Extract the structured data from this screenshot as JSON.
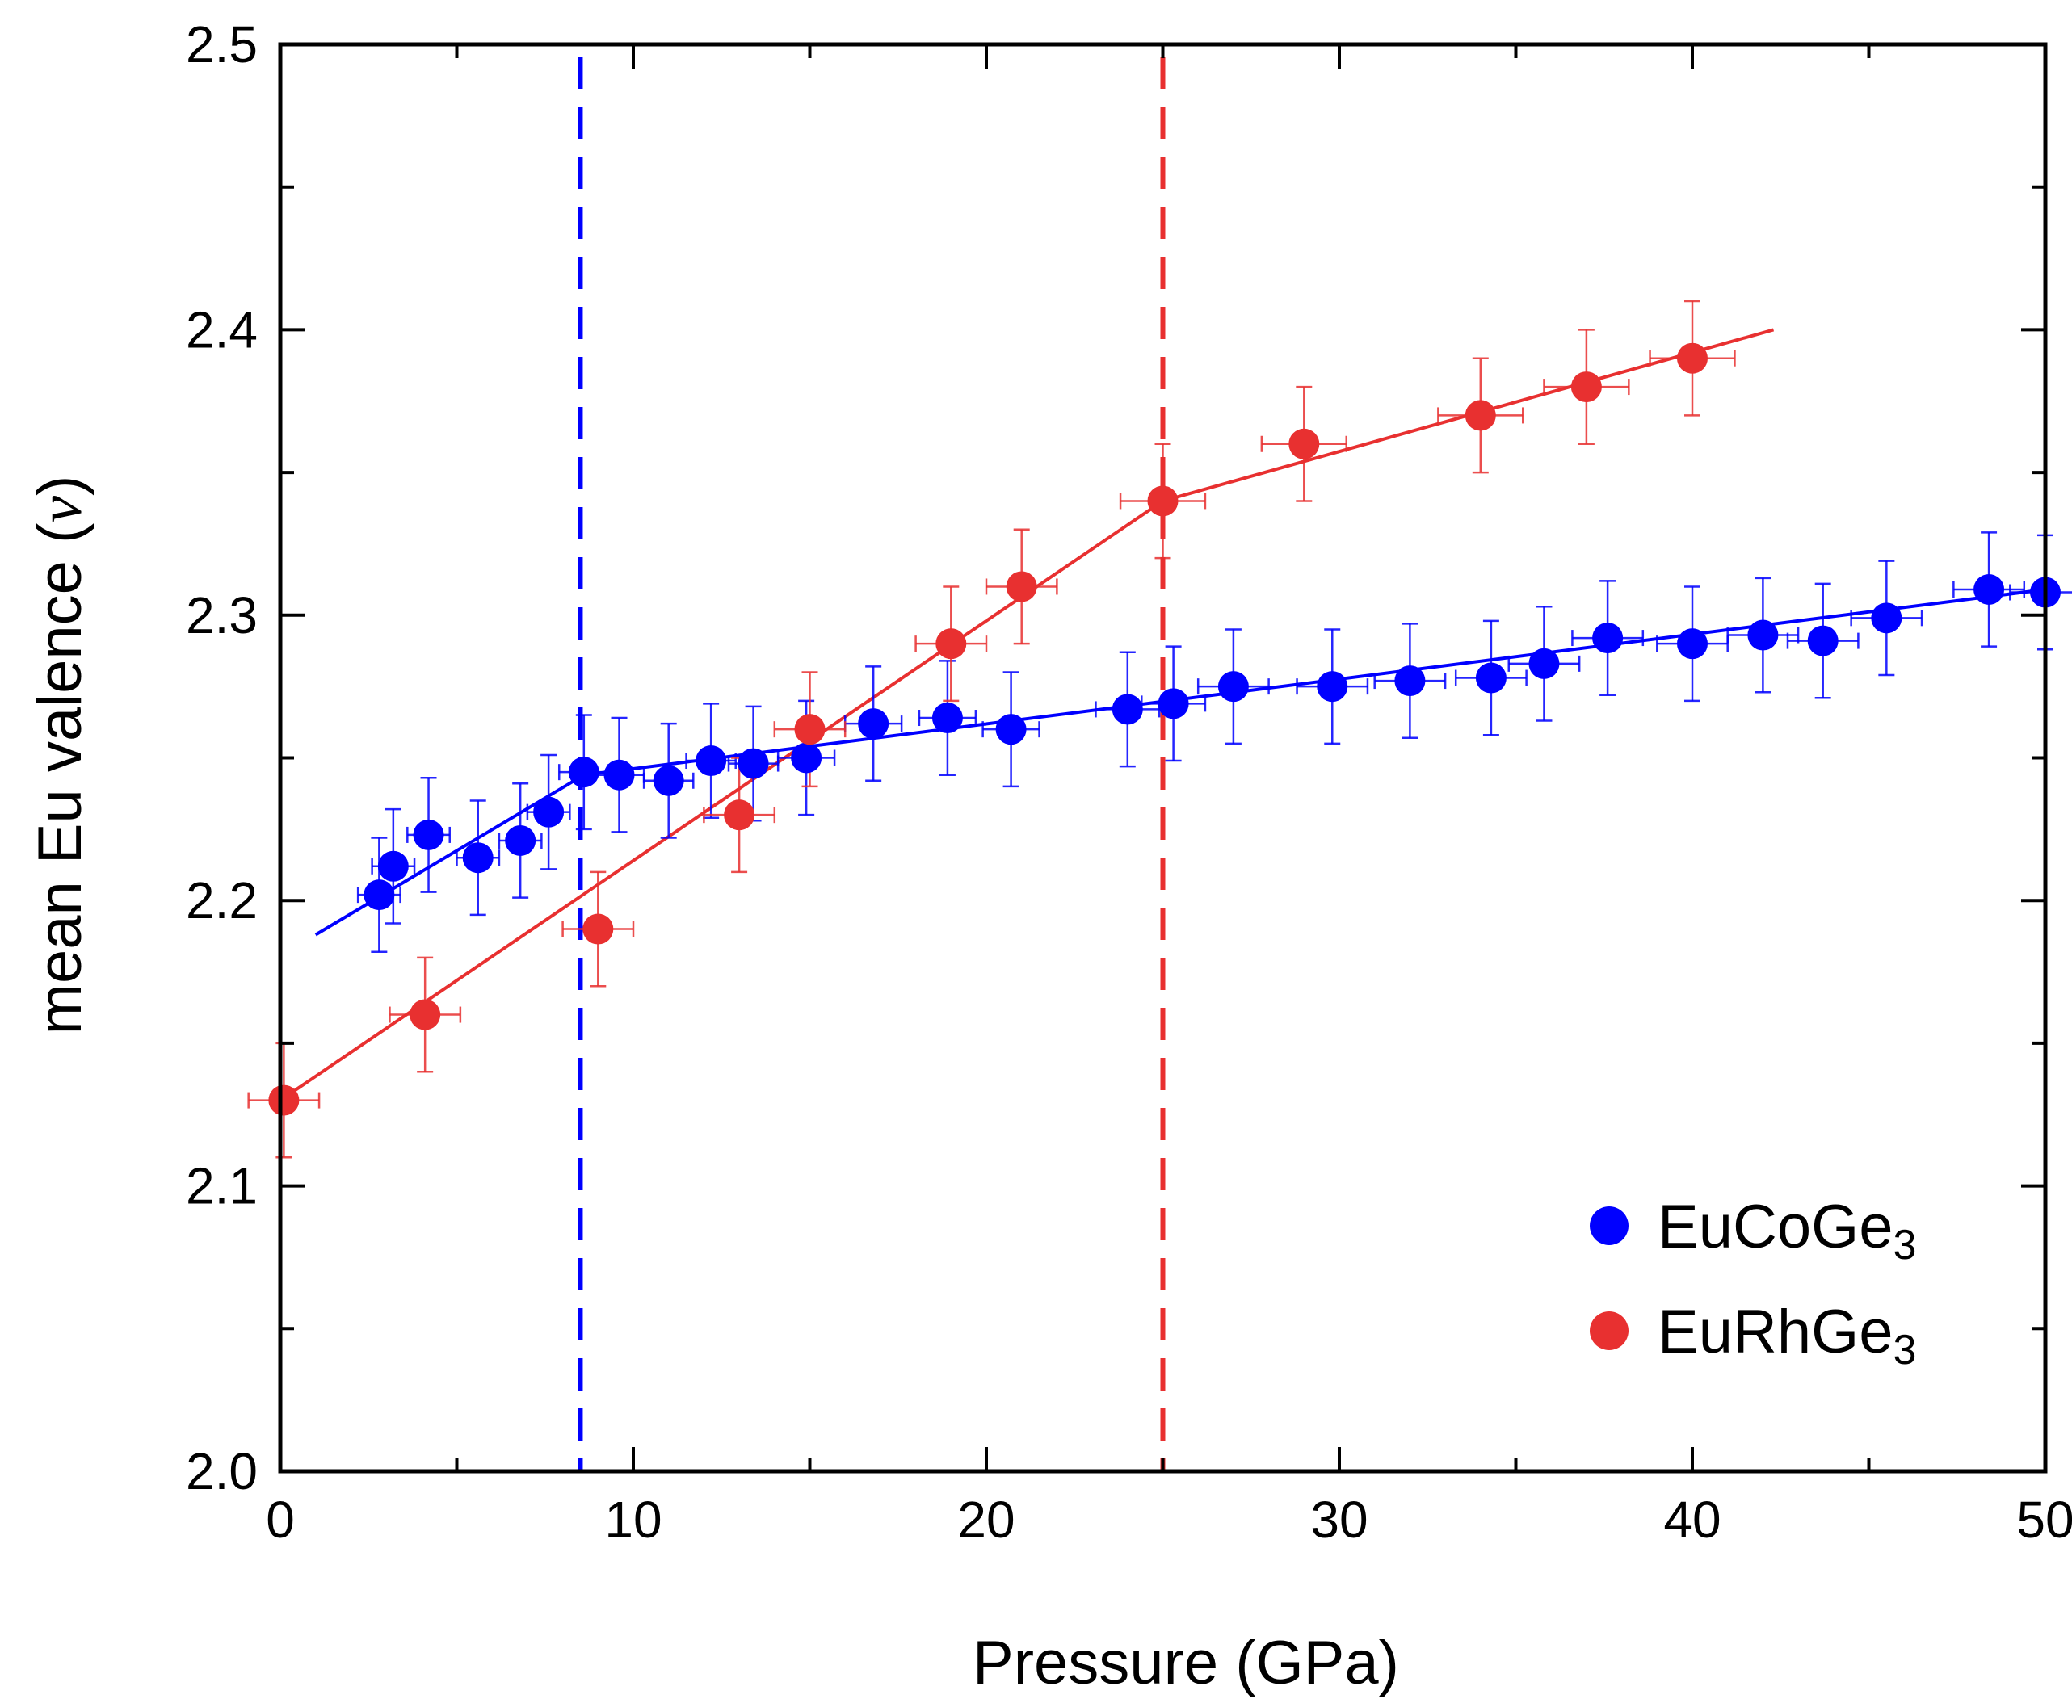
{
  "chart_data": {
    "type": "scatter",
    "xlabel": "Pressure (GPa)",
    "ylabel_prefix": "mean Eu valence (",
    "ylabel_symbol": "ν",
    "ylabel_suffix": ")",
    "xlim": [
      0,
      50
    ],
    "ylim": [
      2.0,
      2.5
    ],
    "x_ticks": [
      0,
      10,
      20,
      30,
      40,
      50
    ],
    "x_tick_labels": [
      "0",
      "10",
      "20",
      "30",
      "40",
      "50"
    ],
    "y_ticks": [
      2.0,
      2.1,
      2.2,
      2.3,
      2.4,
      2.5
    ],
    "y_tick_labels": [
      "2.0",
      "2.1",
      "2.2",
      "2.3",
      "2.4",
      "2.5"
    ],
    "grid": false,
    "legend_position": "bottom-right",
    "series": [
      {
        "name": "EuCoGe",
        "name_subscript": "3",
        "color": "#0000ff",
        "points": [
          {
            "x": 2.8,
            "y": 2.202,
            "xerr": 0.6,
            "yerr": 0.02
          },
          {
            "x": 3.2,
            "y": 2.212,
            "xerr": 0.6,
            "yerr": 0.02
          },
          {
            "x": 4.2,
            "y": 2.223,
            "xerr": 0.6,
            "yerr": 0.02
          },
          {
            "x": 5.6,
            "y": 2.215,
            "xerr": 0.6,
            "yerr": 0.02
          },
          {
            "x": 6.8,
            "y": 2.221,
            "xerr": 0.6,
            "yerr": 0.02
          },
          {
            "x": 7.6,
            "y": 2.231,
            "xerr": 0.6,
            "yerr": 0.02
          },
          {
            "x": 8.6,
            "y": 2.245,
            "xerr": 0.7,
            "yerr": 0.02
          },
          {
            "x": 9.6,
            "y": 2.244,
            "xerr": 0.7,
            "yerr": 0.02
          },
          {
            "x": 11.0,
            "y": 2.242,
            "xerr": 0.7,
            "yerr": 0.02
          },
          {
            "x": 12.2,
            "y": 2.249,
            "xerr": 0.7,
            "yerr": 0.02
          },
          {
            "x": 13.4,
            "y": 2.248,
            "xerr": 0.7,
            "yerr": 0.02
          },
          {
            "x": 14.9,
            "y": 2.25,
            "xerr": 0.8,
            "yerr": 0.02
          },
          {
            "x": 16.8,
            "y": 2.262,
            "xerr": 0.8,
            "yerr": 0.02
          },
          {
            "x": 18.9,
            "y": 2.264,
            "xerr": 0.8,
            "yerr": 0.02
          },
          {
            "x": 20.7,
            "y": 2.26,
            "xerr": 0.8,
            "yerr": 0.02
          },
          {
            "x": 24.0,
            "y": 2.267,
            "xerr": 0.9,
            "yerr": 0.02
          },
          {
            "x": 25.3,
            "y": 2.269,
            "xerr": 0.9,
            "yerr": 0.02
          },
          {
            "x": 27.0,
            "y": 2.275,
            "xerr": 1.0,
            "yerr": 0.02
          },
          {
            "x": 29.8,
            "y": 2.275,
            "xerr": 1.0,
            "yerr": 0.02
          },
          {
            "x": 32.0,
            "y": 2.277,
            "xerr": 1.0,
            "yerr": 0.02
          },
          {
            "x": 34.3,
            "y": 2.278,
            "xerr": 1.0,
            "yerr": 0.02
          },
          {
            "x": 35.8,
            "y": 2.283,
            "xerr": 1.0,
            "yerr": 0.02
          },
          {
            "x": 37.6,
            "y": 2.292,
            "xerr": 1.0,
            "yerr": 0.02
          },
          {
            "x": 40.0,
            "y": 2.29,
            "xerr": 1.0,
            "yerr": 0.02
          },
          {
            "x": 42.0,
            "y": 2.293,
            "xerr": 1.0,
            "yerr": 0.02
          },
          {
            "x": 43.7,
            "y": 2.291,
            "xerr": 1.0,
            "yerr": 0.02
          },
          {
            "x": 45.5,
            "y": 2.299,
            "xerr": 1.0,
            "yerr": 0.02
          },
          {
            "x": 48.4,
            "y": 2.309,
            "xerr": 1.0,
            "yerr": 0.02
          },
          {
            "x": 50.0,
            "y": 2.308,
            "xerr": 1.0,
            "yerr": 0.02
          }
        ],
        "fit_segments": [
          {
            "x": [
              1.0,
              8.6
            ],
            "y": [
              2.188,
              2.244
            ]
          },
          {
            "x": [
              8.6,
              50.0
            ],
            "y": [
              2.244,
              2.309
            ]
          }
        ],
        "transition_x": 8.5
      },
      {
        "name": "EuRhGe",
        "name_subscript": "3",
        "color": "#e83030",
        "points": [
          {
            "x": 0.1,
            "y": 2.13,
            "xerr": 1.0,
            "yerr": 0.02
          },
          {
            "x": 4.1,
            "y": 2.16,
            "xerr": 1.0,
            "yerr": 0.02
          },
          {
            "x": 9.0,
            "y": 2.19,
            "xerr": 1.0,
            "yerr": 0.02
          },
          {
            "x": 13.0,
            "y": 2.23,
            "xerr": 1.0,
            "yerr": 0.02
          },
          {
            "x": 15.0,
            "y": 2.26,
            "xerr": 1.0,
            "yerr": 0.02
          },
          {
            "x": 19.0,
            "y": 2.29,
            "xerr": 1.0,
            "yerr": 0.02
          },
          {
            "x": 21.0,
            "y": 2.31,
            "xerr": 1.0,
            "yerr": 0.02
          },
          {
            "x": 25.0,
            "y": 2.34,
            "xerr": 1.2,
            "yerr": 0.02
          },
          {
            "x": 29.0,
            "y": 2.36,
            "xerr": 1.2,
            "yerr": 0.02
          },
          {
            "x": 34.0,
            "y": 2.37,
            "xerr": 1.2,
            "yerr": 0.02
          },
          {
            "x": 37.0,
            "y": 2.38,
            "xerr": 1.2,
            "yerr": 0.02
          },
          {
            "x": 40.0,
            "y": 2.39,
            "xerr": 1.2,
            "yerr": 0.02
          }
        ],
        "fit_segments": [
          {
            "x": [
              0.0,
              25.0
            ],
            "y": [
              2.13,
              2.34
            ]
          },
          {
            "x": [
              25.0,
              42.3
            ],
            "y": [
              2.34,
              2.4
            ]
          }
        ],
        "transition_x": 25.0
      }
    ]
  }
}
